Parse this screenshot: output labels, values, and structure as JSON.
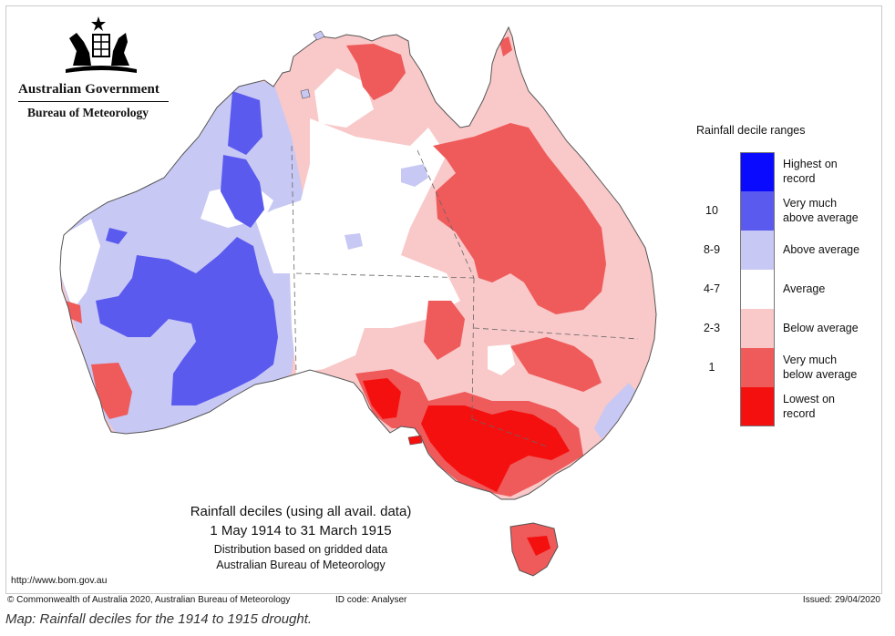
{
  "logo": {
    "government": "Australian Government",
    "agency": "Bureau of Meteorology"
  },
  "legend": {
    "title": "Rainfall decile ranges",
    "items": [
      {
        "range": "",
        "lines": [
          "Highest on",
          "record"
        ],
        "color": "#0a0aff"
      },
      {
        "range": "10",
        "lines": [
          "Very much",
          "above average"
        ],
        "color": "#5a5aef"
      },
      {
        "range": "8-9",
        "lines": [
          "Above average"
        ],
        "color": "#c8c8f4"
      },
      {
        "range": "4-7",
        "lines": [
          "Average"
        ],
        "color": "#ffffff"
      },
      {
        "range": "2-3",
        "lines": [
          "Below average"
        ],
        "color": "#f9c8c8"
      },
      {
        "range": "1",
        "lines": [
          "Very much",
          "below average"
        ],
        "color": "#ef5a5a"
      },
      {
        "range": "",
        "lines": [
          "Lowest on",
          "record"
        ],
        "color": "#f51010"
      }
    ]
  },
  "map_title": {
    "line1": "Rainfall deciles (using all avail. data)",
    "line2": "1 May 1914 to 31 March 1915",
    "line3": "Distribution based on gridded data",
    "line4": "Australian Bureau of Meteorology"
  },
  "url": "http://www.bom.gov.au",
  "footer": {
    "copyright": "© Commonwealth of Australia 2020, Australian Bureau of Meteorology",
    "id_code": "ID code: Analyser",
    "issued": "Issued: 29/04/2020"
  },
  "caption": "Map: Rainfall deciles for the 1914 to 1915 drought.",
  "colors": {
    "highest": "#0a0aff",
    "very_much_above": "#5a5aef",
    "above": "#c8c8f4",
    "average": "#ffffff",
    "below": "#f9c8c8",
    "very_much_below": "#ef5a5a",
    "lowest": "#f51010",
    "border": "#555555"
  }
}
